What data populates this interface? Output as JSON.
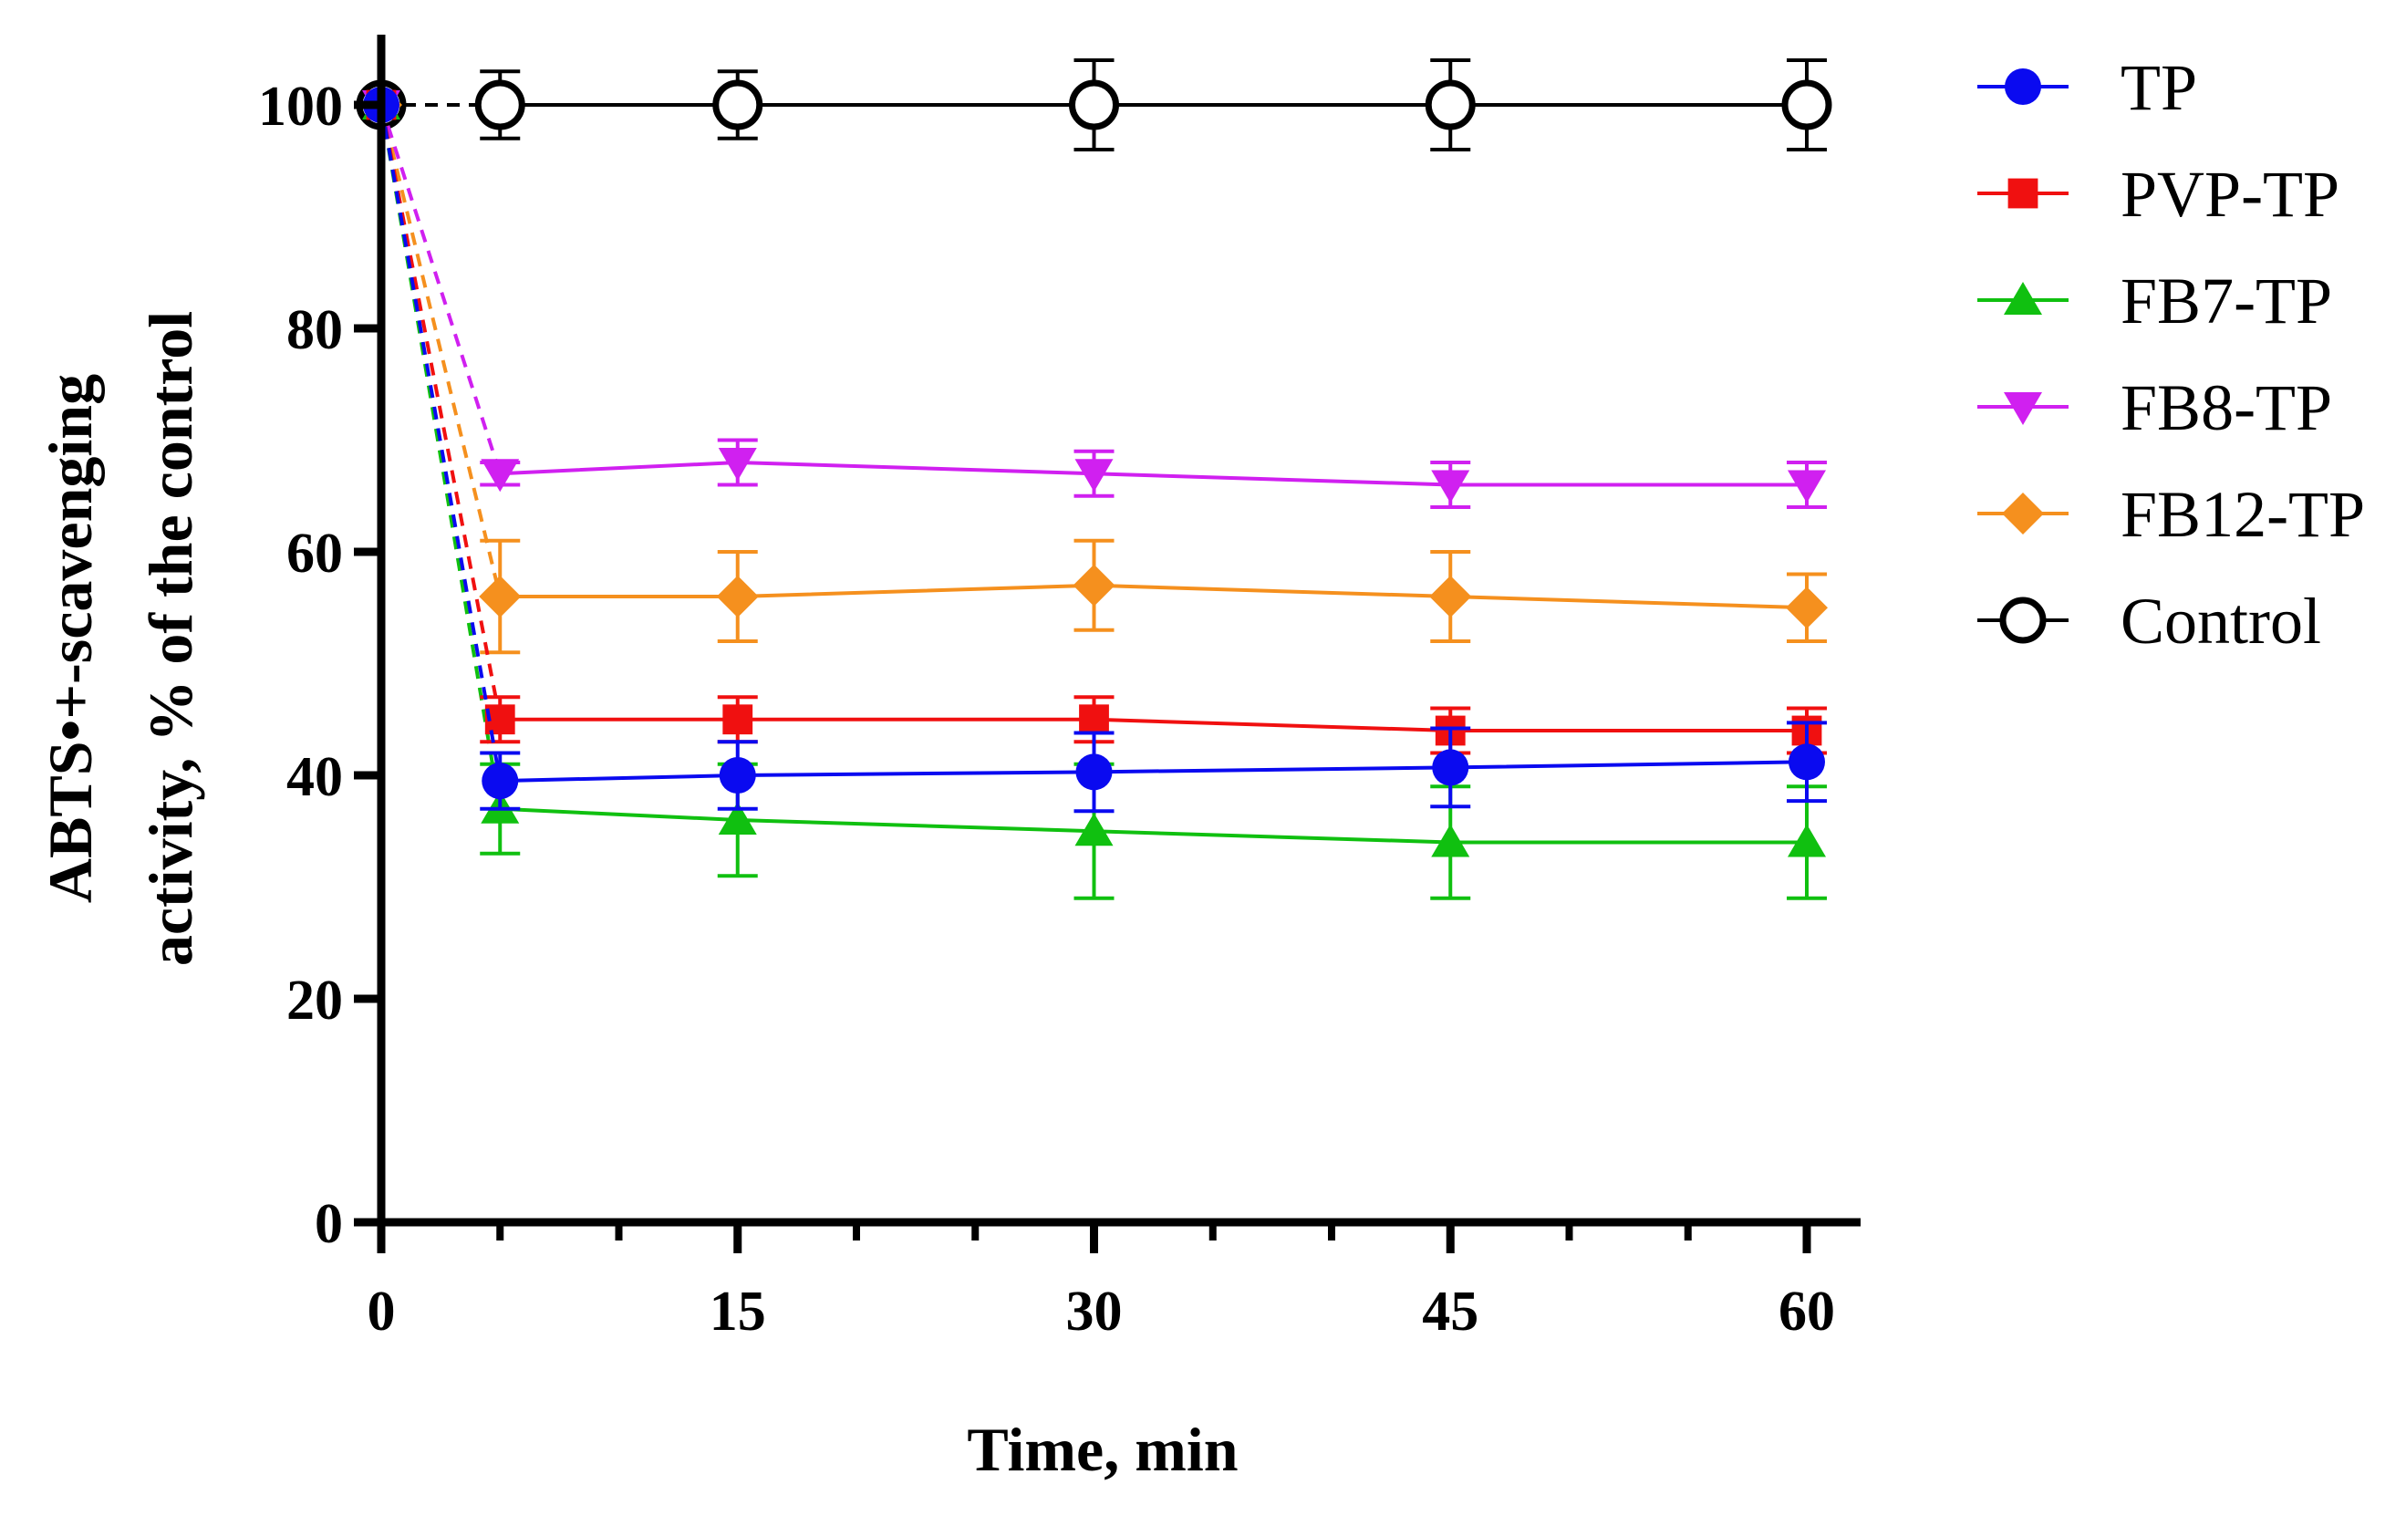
{
  "chart_data": {
    "type": "line",
    "title": "",
    "xlabel": "Time, min",
    "ylabel_line1": "ABTS•+-scavenging",
    "ylabel_line2": "activity, % of the control",
    "xlim": [
      0,
      62
    ],
    "ylim": [
      0,
      105
    ],
    "x_ticks": [
      0,
      15,
      30,
      45,
      60
    ],
    "x_minor_ticks": [
      5,
      10,
      20,
      25,
      35,
      40,
      50,
      55
    ],
    "y_ticks": [
      0,
      20,
      40,
      60,
      80,
      100
    ],
    "x_tick_labels": [
      "0",
      "15",
      "30",
      "45",
      "60"
    ],
    "y_tick_labels": [
      "0",
      "20",
      "40",
      "60",
      "80",
      "100"
    ],
    "legend_position": "right",
    "series": [
      {
        "name": "TP",
        "color": "#0a0af0",
        "marker": "circle",
        "x": [
          0,
          5,
          15,
          30,
          45,
          60
        ],
        "values": [
          100,
          39.5,
          40,
          40.3,
          40.7,
          41.2
        ],
        "err": [
          0,
          2.5,
          3,
          3.5,
          3.5,
          3.5
        ]
      },
      {
        "name": "PVP-TP",
        "color": "#f01010",
        "marker": "square",
        "x": [
          0,
          5,
          15,
          30,
          45,
          60
        ],
        "values": [
          100,
          45,
          45,
          45,
          44,
          44
        ],
        "err": [
          0,
          2,
          2,
          2,
          2,
          2
        ]
      },
      {
        "name": "FB7-TP",
        "color": "#10c010",
        "marker": "triangle-up",
        "x": [
          0,
          5,
          15,
          30,
          45,
          60
        ],
        "values": [
          100,
          37,
          36,
          35,
          34,
          34
        ],
        "err": [
          0,
          4,
          5,
          6,
          5,
          5
        ]
      },
      {
        "name": "FB8-TP",
        "color": "#d020f0",
        "marker": "triangle-down",
        "x": [
          0,
          5,
          15,
          30,
          45,
          60
        ],
        "values": [
          100,
          67,
          68,
          67,
          66,
          66
        ],
        "err": [
          0,
          1,
          2,
          2,
          2,
          2
        ]
      },
      {
        "name": "FB12-TP",
        "color": "#f5901e",
        "marker": "diamond",
        "x": [
          0,
          5,
          15,
          30,
          45,
          60
        ],
        "values": [
          100,
          56,
          56,
          57,
          56,
          55
        ],
        "err": [
          0,
          5,
          4,
          4,
          4,
          3
        ]
      },
      {
        "name": "Control",
        "color": "#000000",
        "marker": "open-circle",
        "x": [
          0,
          5,
          15,
          30,
          45,
          60
        ],
        "values": [
          100,
          100,
          100,
          100,
          100,
          100
        ],
        "err": [
          0,
          3,
          3,
          4,
          4,
          4
        ]
      }
    ]
  }
}
